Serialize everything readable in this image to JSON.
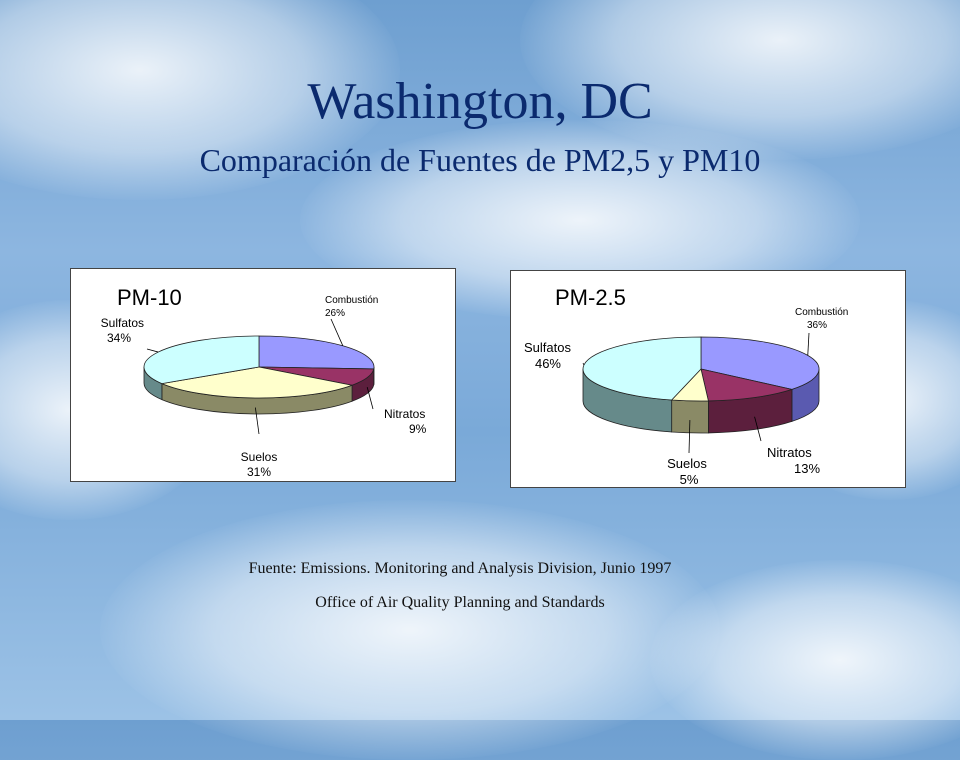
{
  "slide": {
    "title": "Washington, DC",
    "subtitle": "Comparación  de Fuentes de PM2,5 y PM10",
    "source_line_1": "Fuente: Emissions. Monitoring and Analysis Division, Junio 1997",
    "source_line_2": "Office of Air Quality Planning and Standards"
  },
  "chart_data": [
    {
      "type": "pie",
      "title": "PM-10",
      "slices": [
        {
          "label": "Combustión",
          "value": 26,
          "display": "26%",
          "color": "#9999ff",
          "side": "#5a5ab0"
        },
        {
          "label": "Nitratos",
          "value": 9,
          "display": "9%",
          "color": "#993366",
          "side": "#5c1f3d"
        },
        {
          "label": "Suelos",
          "value": 31,
          "display": "31%",
          "color": "#ffffcc",
          "side": "#8a8a66"
        },
        {
          "label": "Sulfatos",
          "value": 34,
          "display": "34%",
          "color": "#ccffff",
          "side": "#668a8a"
        }
      ]
    },
    {
      "type": "pie",
      "title": "PM-2.5",
      "slices": [
        {
          "label": "Combustión",
          "value": 36,
          "display": "36%",
          "color": "#9999ff",
          "side": "#5a5ab0"
        },
        {
          "label": "Nitratos",
          "value": 13,
          "display": "13%",
          "color": "#993366",
          "side": "#5c1f3d"
        },
        {
          "label": "Suelos",
          "value": 5,
          "display": "5%",
          "color": "#ffffcc",
          "side": "#8a8a66"
        },
        {
          "label": "Sulfatos",
          "value": 46,
          "display": "46%",
          "color": "#ccffff",
          "side": "#668a8a"
        }
      ]
    }
  ]
}
